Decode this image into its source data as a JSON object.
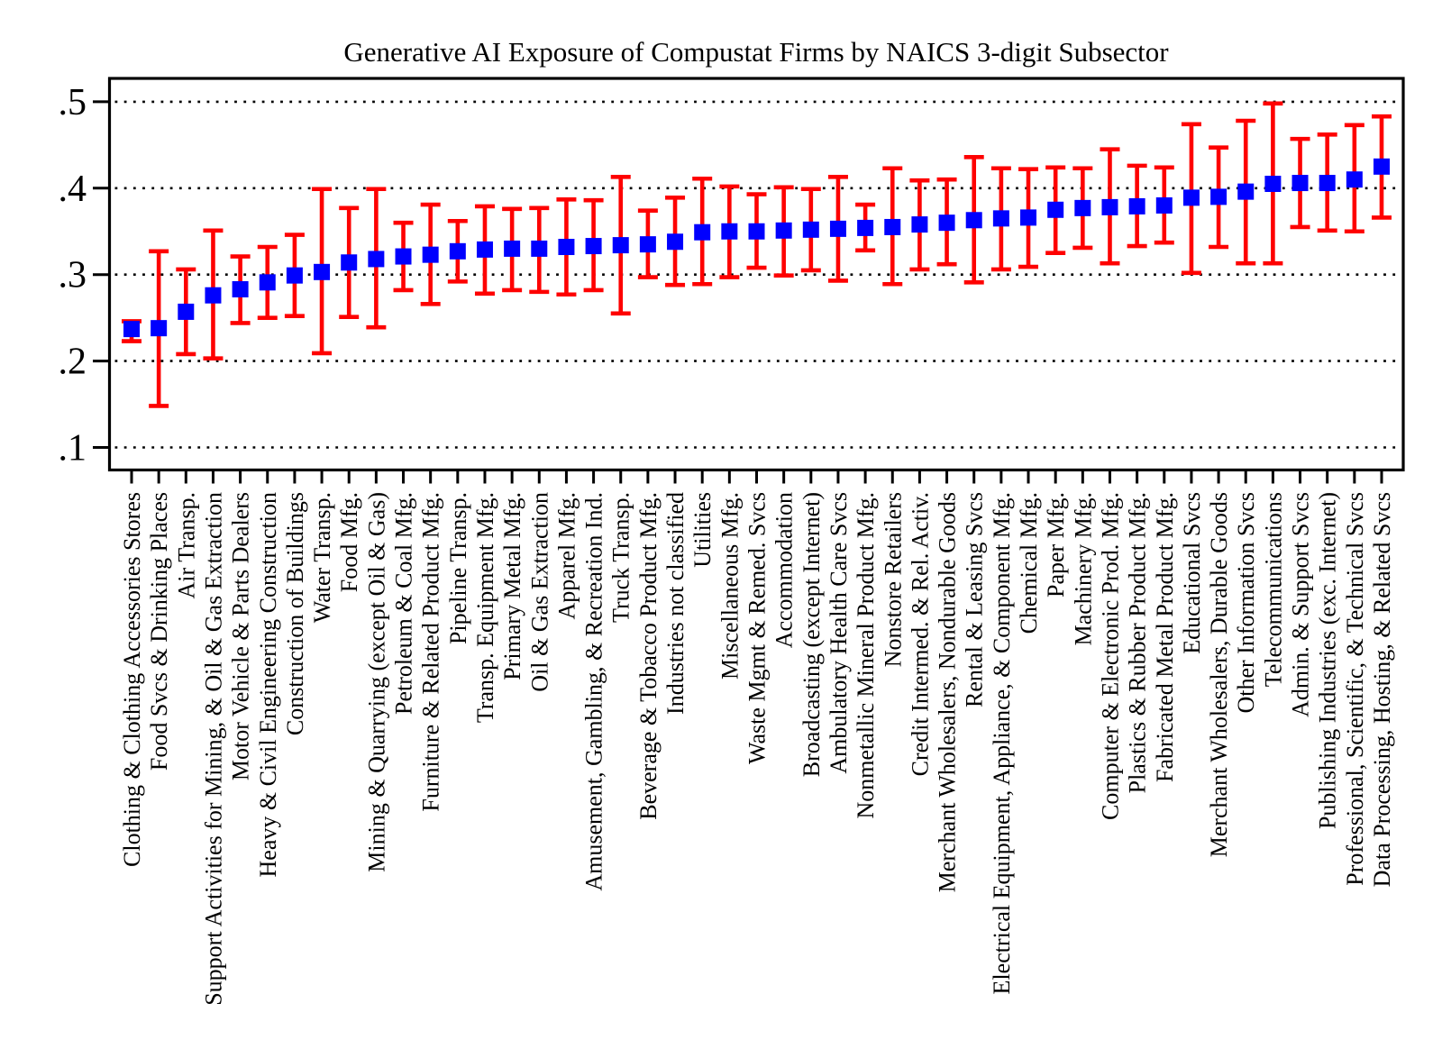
{
  "chart_data": {
    "type": "scatter",
    "subtype": "point-estimates-with-confidence-intervals",
    "title": "Generative AI Exposure of Compustat Firms by NAICS 3-digit Subsector",
    "xlabel": "",
    "ylabel": "",
    "ylim": [
      0.074,
      0.526
    ],
    "grid": "dotted-horizontal",
    "legend": "none",
    "marker_shape": "square",
    "colors": {
      "marker": "#0000fe",
      "error_bar": "#fe0000",
      "axis": "#000000",
      "background": "#ffffff"
    },
    "y_axis": {
      "tick_values": [
        0.1,
        0.2,
        0.3,
        0.4,
        0.5
      ],
      "tick_labels": [
        ".1",
        ".2",
        ".3",
        ".4",
        ".5"
      ]
    },
    "categories": [
      "Clothing & Clothing Accessories Stores",
      "Food Svcs & Drinking Places",
      "Air Transp.",
      "Support Activities for Mining, & Oil & Gas Extraction",
      "Motor Vehicle & Parts Dealers",
      "Heavy & Civil Engineering Construction",
      "Construction of Buildings",
      "Water Transp.",
      "Food Mfg.",
      "Mining & Quarrying (except Oil & Gas)",
      "Petroleum & Coal Mfg.",
      "Furniture & Related Product Mfg.",
      "Pipeline Transp.",
      "Transp. Equipment Mfg.",
      "Primary Metal Mfg.",
      "Oil & Gas Extraction",
      "Apparel Mfg.",
      "Amusement, Gambling, & Recreation Ind.",
      "Truck Transp.",
      "Beverage & Tobacco Product Mfg.",
      "Industries not classified",
      "Utilities",
      "Miscellaneous Mfg.",
      "Waste Mgmt & Remed. Svcs",
      "Accommodation",
      "Broadcasting (except Internet)",
      "Ambulatory Health Care Svcs",
      "Nonmetallic Mineral Product Mfg.",
      "Nonstore Retailers",
      "Credit Intermed. & Rel. Activ.",
      "Merchant Wholesalers, Nondurable Goods",
      "Rental & Leasing Svcs",
      "Electrical Equipment, Appliance, & Component Mfg.",
      "Chemical Mfg.",
      "Paper Mfg.",
      "Machinery Mfg.",
      "Computer & Electronic Prod. Mfg.",
      "Plastics & Rubber Product Mfg.",
      "Fabricated Metal Product Mfg.",
      "Educational Svcs",
      "Merchant Wholesalers, Durable Goods",
      "Other Information Svcs",
      "Telecommunications",
      "Admin. & Support Svcs",
      "Publishing Industries (exc. Internet)",
      "Professional, Scientific, & Technical Svcs",
      "Data Processing, Hosting, & Related Svcs"
    ],
    "estimates": [
      0.237,
      0.238,
      0.257,
      0.276,
      0.283,
      0.291,
      0.299,
      0.303,
      0.314,
      0.318,
      0.321,
      0.323,
      0.327,
      0.329,
      0.33,
      0.33,
      0.332,
      0.333,
      0.334,
      0.335,
      0.338,
      0.349,
      0.35,
      0.35,
      0.351,
      0.352,
      0.353,
      0.354,
      0.355,
      0.358,
      0.36,
      0.363,
      0.365,
      0.366,
      0.375,
      0.377,
      0.378,
      0.379,
      0.38,
      0.389,
      0.39,
      0.396,
      0.405,
      0.406,
      0.406,
      0.41,
      0.425
    ],
    "ci_lower": [
      0.223,
      0.148,
      0.208,
      0.203,
      0.244,
      0.25,
      0.252,
      0.209,
      0.251,
      0.239,
      0.282,
      0.266,
      0.292,
      0.278,
      0.282,
      0.28,
      0.277,
      0.282,
      0.255,
      0.297,
      0.288,
      0.289,
      0.297,
      0.308,
      0.299,
      0.305,
      0.293,
      0.328,
      0.289,
      0.306,
      0.312,
      0.291,
      0.306,
      0.309,
      0.325,
      0.331,
      0.313,
      0.333,
      0.337,
      0.302,
      0.332,
      0.313,
      0.313,
      0.355,
      0.351,
      0.35,
      0.366
    ],
    "ci_upper": [
      0.246,
      0.327,
      0.306,
      0.351,
      0.321,
      0.332,
      0.346,
      0.399,
      0.377,
      0.399,
      0.36,
      0.381,
      0.362,
      0.379,
      0.376,
      0.377,
      0.387,
      0.386,
      0.413,
      0.374,
      0.389,
      0.411,
      0.402,
      0.393,
      0.401,
      0.399,
      0.413,
      0.381,
      0.423,
      0.409,
      0.41,
      0.436,
      0.423,
      0.422,
      0.424,
      0.423,
      0.445,
      0.426,
      0.424,
      0.474,
      0.447,
      0.478,
      0.498,
      0.457,
      0.462,
      0.473,
      0.483
    ]
  }
}
